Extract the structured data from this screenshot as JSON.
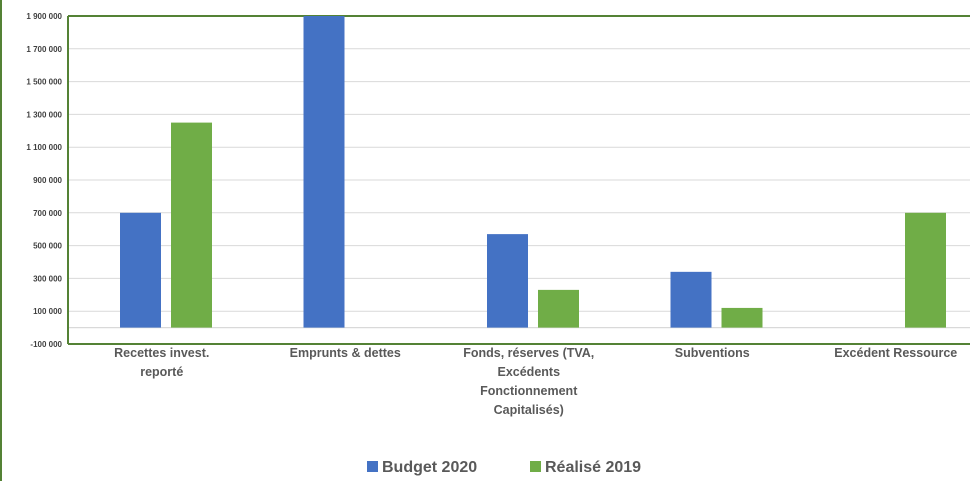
{
  "chart_data": {
    "type": "bar",
    "categories": [
      [
        "Recettes invest.",
        "reporté"
      ],
      [
        "Emprunts & dettes"
      ],
      [
        "Fonds, réserves (TVA,",
        "Excédents",
        "Fonctionnement",
        "Capitalisés)"
      ],
      [
        "Subventions"
      ],
      [
        "Excédent Ressource"
      ]
    ],
    "series": [
      {
        "name": "Budget 2020",
        "color": "#4472C4",
        "values": [
          700000,
          1900000,
          570000,
          340000,
          0
        ]
      },
      {
        "name": "Réalisé 2019",
        "color": "#70AD47",
        "values": [
          1250000,
          0,
          230000,
          120000,
          700000
        ]
      }
    ],
    "ylim": [
      -100000,
      1900000
    ],
    "yticks": [
      "1 900 000",
      "1 700 000",
      "1 500 000",
      "1 300 000",
      "1 100 000",
      "900 000",
      "700 000",
      "500 000",
      "300 000",
      "100 000",
      "-100 000"
    ],
    "ytick_values": [
      1900000,
      1700000,
      1500000,
      1300000,
      1100000,
      900000,
      700000,
      500000,
      300000,
      100000,
      -100000
    ],
    "grid": true,
    "legend_position": "bottom",
    "border_color": "#548235"
  }
}
